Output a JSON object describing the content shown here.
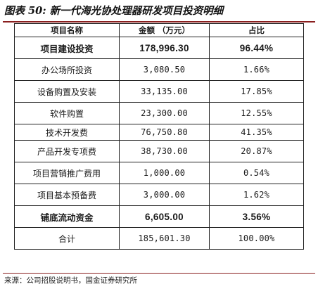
{
  "figure": {
    "title": "图表 50: 新一代海光协处理器研发项目投资明细",
    "source": "来源：公司招股说明书，国金证券研究所"
  },
  "table": {
    "headers": [
      "项目名称",
      "金额  （万元）",
      "占比"
    ],
    "rows": [
      {
        "name": "项目建设投资",
        "amount": "178,996.30",
        "share": "96.44%",
        "bold": true
      },
      {
        "name": "办公场所投资",
        "amount": "3,080.50",
        "share": "1.66%"
      },
      {
        "name": "设备购置及安装",
        "amount": "33,135.00",
        "share": "17.85%"
      },
      {
        "name": "软件购置",
        "amount": "23,300.00",
        "share": "12.55%"
      },
      {
        "name": "技术开发费",
        "amount": "76,750.80",
        "share": "41.35%"
      },
      {
        "name": "产品开发专项费",
        "amount": "38,730.00",
        "share": "20.87%"
      },
      {
        "name": "项目营销推广费用",
        "amount": "1,000.00",
        "share": "0.54%"
      },
      {
        "name": "项目基本预备费",
        "amount": "3,000.00",
        "share": "1.62%"
      },
      {
        "name": "铺底流动资金",
        "amount": "6,605.00",
        "share": "3.56%",
        "bold": true
      },
      {
        "name": "合计",
        "amount": "185,601.30",
        "share": "100.00%"
      }
    ]
  }
}
